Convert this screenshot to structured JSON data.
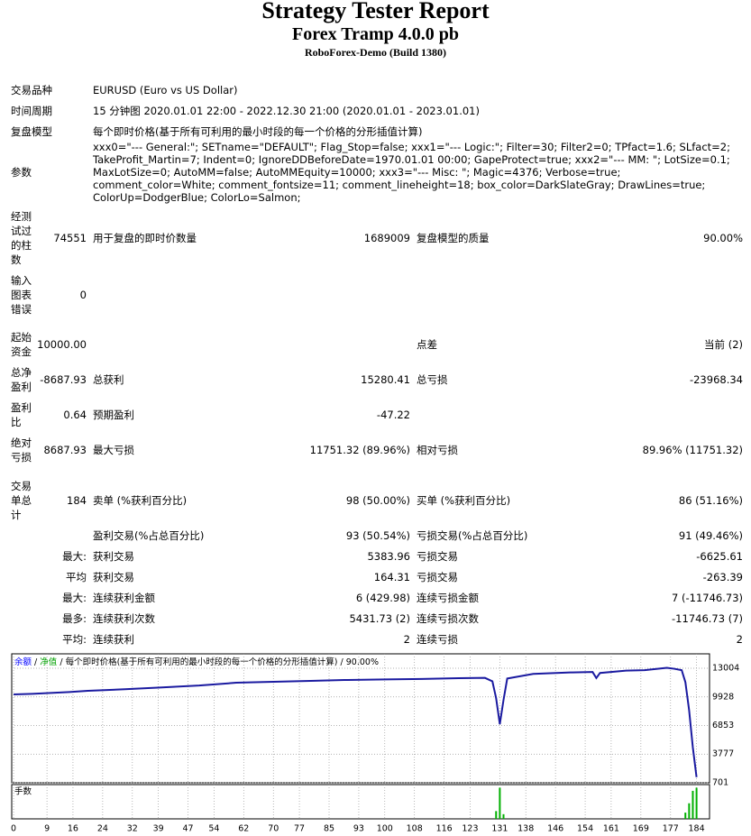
{
  "header": {
    "title": "Strategy Tester Report",
    "subtitle": "Forex Tramp 4.0.0 pb",
    "server": "RoboForex-Demo (Build 1380)"
  },
  "info": {
    "rows": [
      {
        "label": "交易品种",
        "value": "EURUSD (Euro vs US Dollar)"
      },
      {
        "label": "时间周期",
        "value": "15 分钟图 2020.01.01 22:00 - 2022.12.30 21:00 (2020.01.01 - 2023.01.01)"
      },
      {
        "label": "复盘模型",
        "value": "每个即时价格(基于所有可利用的最小时段的每一个价格的分形插值计算)"
      },
      {
        "label": "参数",
        "value": "xxx0=\"--- General:\"; SETname=\"DEFAULT\"; Flag_Stop=false; xxx1=\"--- Logic:\"; Filter=30; Filter2=0; TPfact=1.6; SLfact=2; TakeProfit_Martin=7; Indent=0; IgnoreDDBeforeDate=1970.01.01 00:00; GapeProtect=true; xxx2=\"--- MM: \"; LotSize=0.1; MaxLotSize=0; AutoMM=false; AutoMMEquity=10000; xxx3=\"--- Misc: \"; Magic=4376; Verbose=true; comment_color=White; comment_fontsize=11; comment_lineheight=18; box_color=DarkSlateGray; DrawLines=true; ColorUp=DodgerBlue; ColorLo=Salmon;"
      }
    ]
  },
  "stats": {
    "rows": [
      {
        "label1": "经测试过的柱数",
        "value1": "74551",
        "label2": "用于复盘的即时价数量",
        "value2": "1689009",
        "label3": "复盘模型的质量",
        "value3": "90.00%"
      },
      {
        "label1": "输入图表错误",
        "value1": "0"
      },
      {
        "label1": "起始资金",
        "value1": "10000.00",
        "label3": "点差",
        "value3": "当前 (2)"
      },
      {
        "label1": "总净盈利",
        "value1": "-8687.93",
        "label2": "总获利",
        "value2": "15280.41",
        "label3": "总亏损",
        "value3": "-23968.34"
      },
      {
        "label1": "盈利比",
        "value1": "0.64",
        "label2": "预期盈利",
        "value2": "-47.22"
      },
      {
        "label1": "绝对亏损",
        "value1": "8687.93",
        "label2": "最大亏损",
        "value2": "11751.32 (89.96%)",
        "label3": "相对亏损",
        "value3": "89.96% (11751.32)"
      },
      {
        "label1": "交易单总计",
        "value1": "184",
        "label2": "卖单 (%获利百分比)",
        "value2": "98 (50.00%)",
        "label3": "买单 (%获利百分比)",
        "value3": "86 (51.16%)"
      },
      {
        "label2": "盈利交易(%占总百分比)",
        "value2": "93 (50.54%)",
        "label3": "亏损交易(%占总百分比)",
        "value3": "91 (49.46%)"
      },
      {
        "value1": "最大:",
        "label2": "获利交易",
        "value2": "5383.96",
        "label3": "亏损交易",
        "value3": "-6625.61"
      },
      {
        "value1": "平均",
        "label2": "获利交易",
        "value2": "164.31",
        "label3": "亏损交易",
        "value3": "-263.39"
      },
      {
        "value1": "最大:",
        "label2": "连续获利金额",
        "value2": "6 (429.98)",
        "label3": "连续亏损金额",
        "value3": "7 (-11746.73)"
      },
      {
        "value1": "最多:",
        "label2": "连续获利次数",
        "value2": "5431.73 (2)",
        "label3": "连续亏损次数",
        "value3": "-11746.73 (7)"
      },
      {
        "value1": "平均:",
        "label2": "连续获利",
        "value2": "2",
        "label3": "连续亏损",
        "value3": "2"
      }
    ]
  },
  "chart_data": [
    {
      "type": "line",
      "legend_separator": "/",
      "equity_label": "净值",
      "equity_color": "#00a000",
      "model": "每个即时价格(基于所有可利用的最小时段的每一个价格的分形插值计算)",
      "quality": "90.00%",
      "x": [
        0,
        5,
        10,
        15,
        20,
        30,
        40,
        50,
        60,
        70,
        80,
        90,
        100,
        110,
        120,
        127,
        129,
        130,
        131,
        132,
        133,
        140,
        150,
        156,
        157,
        158,
        165,
        170,
        176,
        178,
        180,
        181,
        182,
        183,
        184
      ],
      "series": [
        {
          "name": "余额",
          "color": "#1a1aa0",
          "values": [
            10194,
            10250,
            10350,
            10450,
            10580,
            10750,
            10950,
            11150,
            11450,
            11550,
            11650,
            11750,
            11800,
            11850,
            11940,
            11970,
            11600,
            9800,
            7000,
            9600,
            11900,
            12400,
            12550,
            12600,
            11950,
            12500,
            12750,
            12800,
            13050,
            12950,
            12800,
            11500,
            8500,
            4500,
            1312
          ]
        }
      ],
      "xlim": [
        -0.5,
        187.5
      ],
      "xticks": [
        0,
        9,
        16,
        24,
        32,
        39,
        47,
        54,
        62,
        70,
        77,
        85,
        93,
        100,
        108,
        116,
        123,
        131,
        138,
        146,
        154,
        161,
        169,
        177,
        184
      ],
      "ylim": [
        701,
        14554
      ],
      "yticks": [
        13004,
        9928,
        6853,
        3777,
        701
      ],
      "grid": true
    },
    {
      "type": "bar",
      "title": "手数",
      "color": "#00b000",
      "x": [
        130,
        131,
        132,
        181,
        182,
        183,
        184
      ],
      "values": [
        0.25,
        1.0,
        0.15,
        0.2,
        0.5,
        0.9,
        1.0
      ],
      "ylim": [
        0,
        1.1
      ]
    }
  ]
}
